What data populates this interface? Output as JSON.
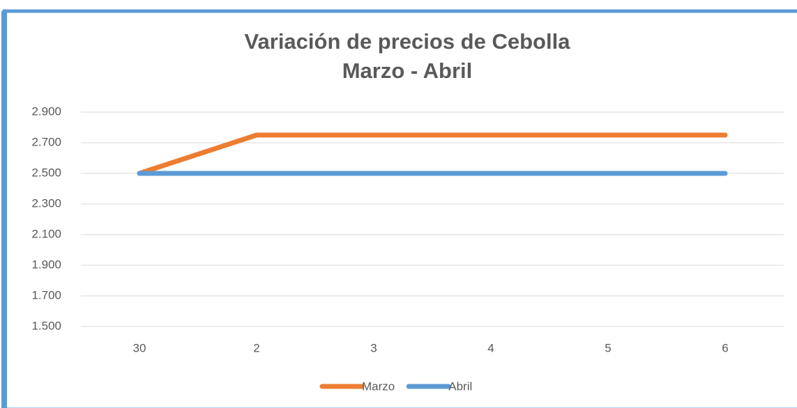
{
  "chart_data": {
    "type": "line",
    "title": [
      "Variación de precios de Cebolla",
      "Marzo - Abril"
    ],
    "categories": [
      "30",
      "2",
      "3",
      "4",
      "5",
      "6"
    ],
    "series": [
      {
        "name": "Marzo",
        "color": "#ed7d31",
        "values": [
          2500,
          2750,
          2750,
          2750,
          2750,
          2750
        ]
      },
      {
        "name": "Abril",
        "color": "#5b9bd5",
        "values": [
          2500,
          2500,
          2500,
          2500,
          2500,
          2500
        ]
      }
    ],
    "ylim": [
      1500,
      2900
    ],
    "yticks": [
      {
        "value": 1500,
        "label": "1.500"
      },
      {
        "value": 1700,
        "label": "1.700"
      },
      {
        "value": 1900,
        "label": "1.900"
      },
      {
        "value": 2100,
        "label": "2.100"
      },
      {
        "value": 2300,
        "label": "2.300"
      },
      {
        "value": 2500,
        "label": "2.500"
      },
      {
        "value": 2700,
        "label": "2.700"
      },
      {
        "value": 2900,
        "label": "2.900"
      }
    ],
    "grid": true,
    "legend": "bottom"
  }
}
